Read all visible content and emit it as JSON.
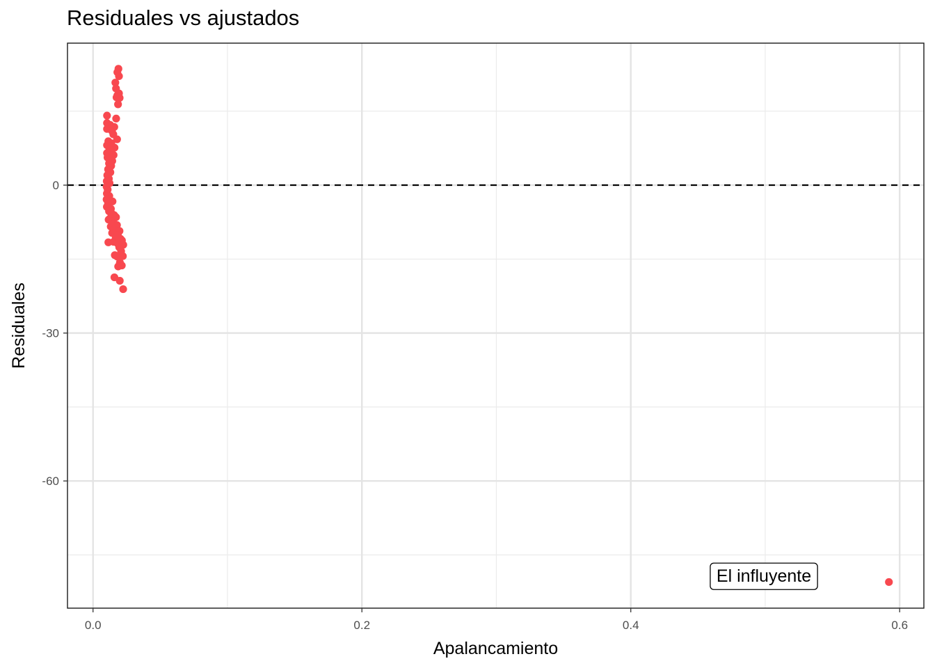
{
  "chart_data": {
    "type": "scatter",
    "title": "Residuales vs ajustados",
    "xlabel": "Apalancamiento",
    "ylabel": "Residuales",
    "xlim": [
      -0.019,
      0.618
    ],
    "ylim": [
      -85.8,
      28.8
    ],
    "x_ticks": [
      0.0,
      0.2,
      0.4,
      0.6
    ],
    "x_tick_labels": [
      "0.0",
      "0.2",
      "0.4",
      "0.6"
    ],
    "x_minor_ticks": [
      0.1,
      0.3,
      0.5
    ],
    "y_ticks": [
      0,
      -30,
      -60
    ],
    "y_tick_labels": [
      "0",
      "-30",
      "-60"
    ],
    "y_minor_ticks": [
      15,
      -15,
      -45,
      -75
    ],
    "grid": true,
    "reference_line": {
      "y": 0,
      "style": "dashed"
    },
    "point_color": "#F8484F",
    "series": [
      {
        "points": [
          [
            0.0189,
            23.6
          ],
          [
            0.0193,
            22.1
          ],
          [
            0.0181,
            22.9
          ],
          [
            0.0166,
            20.8
          ],
          [
            0.0171,
            19.6
          ],
          [
            0.0181,
            18.2
          ],
          [
            0.0198,
            17.7
          ],
          [
            0.0193,
            18.6
          ],
          [
            0.0175,
            17.8
          ],
          [
            0.0186,
            16.4
          ],
          [
            0.0104,
            14.1
          ],
          [
            0.0172,
            13.5
          ],
          [
            0.0104,
            12.6
          ],
          [
            0.0128,
            12.2
          ],
          [
            0.0158,
            11.8
          ],
          [
            0.0104,
            11.4
          ],
          [
            0.0141,
            11.0
          ],
          [
            0.0151,
            10.3
          ],
          [
            0.0179,
            9.3
          ],
          [
            0.0114,
            8.9
          ],
          [
            0.0136,
            8.5
          ],
          [
            0.0104,
            8.1
          ],
          [
            0.016,
            7.6
          ],
          [
            0.0122,
            7.3
          ],
          [
            0.0131,
            6.9
          ],
          [
            0.0104,
            6.5
          ],
          [
            0.0153,
            6.1
          ],
          [
            0.0108,
            5.6
          ],
          [
            0.0127,
            5.2
          ],
          [
            0.0143,
            4.9
          ],
          [
            0.0119,
            4.4
          ],
          [
            0.0135,
            3.9
          ],
          [
            0.0112,
            3.2
          ],
          [
            0.0129,
            2.6
          ],
          [
            0.0106,
            2.0
          ],
          [
            0.0118,
            1.3
          ],
          [
            0.0102,
            0.8
          ],
          [
            0.0123,
            0.4
          ],
          [
            0.0101,
            -0.3
          ],
          [
            0.0109,
            -0.9
          ],
          [
            0.0103,
            -1.7
          ],
          [
            0.0121,
            -2.2
          ],
          [
            0.0101,
            -2.9
          ],
          [
            0.0145,
            -3.3
          ],
          [
            0.0112,
            -3.7
          ],
          [
            0.0103,
            -4.4
          ],
          [
            0.0133,
            -4.8
          ],
          [
            0.0119,
            -5.3
          ],
          [
            0.0141,
            -5.8
          ],
          [
            0.0158,
            -6.1
          ],
          [
            0.0171,
            -6.5
          ],
          [
            0.0128,
            -6.7
          ],
          [
            0.0116,
            -7.0
          ],
          [
            0.0139,
            -7.4
          ],
          [
            0.0155,
            -7.8
          ],
          [
            0.0178,
            -8.1
          ],
          [
            0.0132,
            -8.4
          ],
          [
            0.0166,
            -8.8
          ],
          [
            0.015,
            -9.1
          ],
          [
            0.0197,
            -9.3
          ],
          [
            0.0142,
            -9.7
          ],
          [
            0.0185,
            -10.1
          ],
          [
            0.0169,
            -10.6
          ],
          [
            0.0205,
            -10.9
          ],
          [
            0.0215,
            -11.2
          ],
          [
            0.0153,
            -11.5
          ],
          [
            0.0114,
            -11.6
          ],
          [
            0.0182,
            -11.8
          ],
          [
            0.0225,
            -12.1
          ],
          [
            0.0195,
            -12.6
          ],
          [
            0.0209,
            -13.4
          ],
          [
            0.0162,
            -14.2
          ],
          [
            0.018,
            -14.5
          ],
          [
            0.0222,
            -14.4
          ],
          [
            0.02,
            -15.7
          ],
          [
            0.0214,
            -16.3
          ],
          [
            0.0187,
            -16.5
          ],
          [
            0.0159,
            -18.7
          ],
          [
            0.0199,
            -19.4
          ],
          [
            0.0224,
            -21.1
          ],
          [
            0.592,
            -80.5
          ]
        ]
      }
    ],
    "annotations": [
      {
        "text": "El influyente",
        "x": 0.499,
        "y": -79.2
      }
    ]
  }
}
